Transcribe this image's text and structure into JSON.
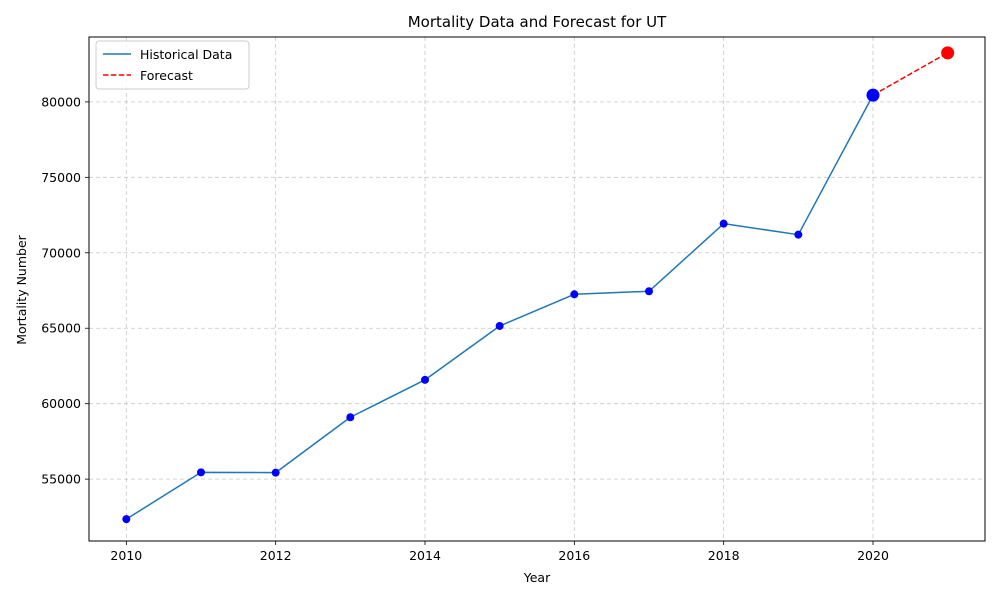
{
  "chart_data": {
    "type": "line",
    "title": "Mortality Data and Forecast for UT",
    "xlabel": "Year",
    "ylabel": "Mortality Number",
    "xlim": [
      2009.5,
      2021.5
    ],
    "ylim": [
      50900,
      84300
    ],
    "x_ticks": [
      2010,
      2012,
      2014,
      2016,
      2018,
      2020
    ],
    "y_ticks": [
      55000,
      60000,
      65000,
      70000,
      75000,
      80000
    ],
    "grid": true,
    "legend_position": "top-left",
    "series": [
      {
        "name": "Historical Data",
        "style": "solid",
        "color": "#1f77b4",
        "marker_color": "#0000ff",
        "x": [
          2010,
          2011,
          2012,
          2013,
          2014,
          2015,
          2016,
          2017,
          2018,
          2019,
          2020
        ],
        "y": [
          52350,
          55450,
          55430,
          59100,
          61580,
          65150,
          67250,
          67450,
          71930,
          71200,
          80450
        ]
      },
      {
        "name": "Forecast",
        "style": "dashed",
        "color": "#ff0000",
        "marker_color": "#ff0000",
        "x": [
          2020,
          2021
        ],
        "y": [
          80450,
          83250
        ]
      }
    ]
  }
}
